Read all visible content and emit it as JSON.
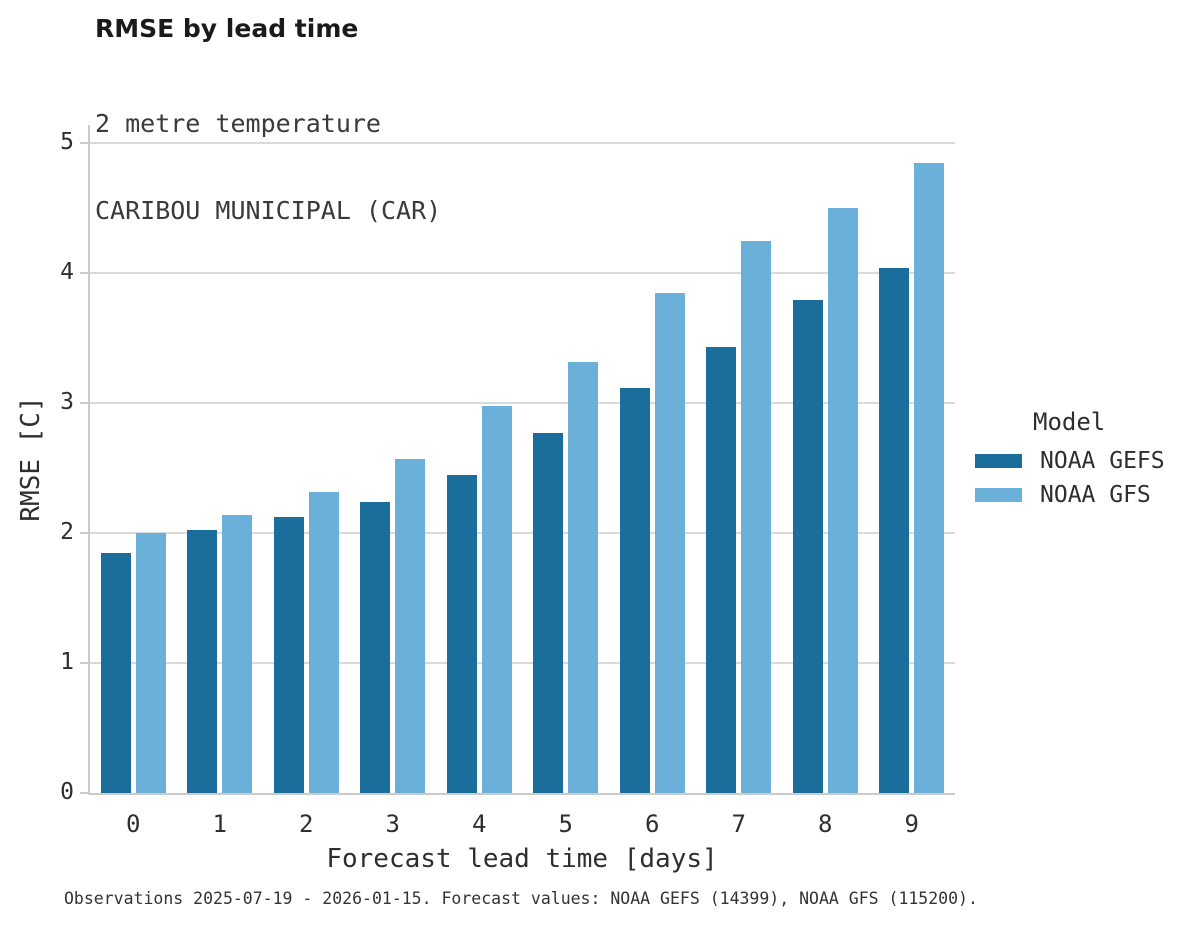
{
  "header": {
    "title": "RMSE by lead time",
    "subtitle_lines": [
      "2 metre temperature",
      "CARIBOU MUNICIPAL (CAR)"
    ]
  },
  "legend": {
    "title": "Model",
    "items": [
      {
        "label": "NOAA GEFS",
        "color": "#1B6D9C"
      },
      {
        "label": "NOAA GFS",
        "color": "#6BB0D9"
      }
    ]
  },
  "footer": {
    "note": "Observations 2025-07-19 - 2026-01-15. Forecast values: NOAA GEFS (14399), NOAA GFS (115200)."
  },
  "chart_data": {
    "type": "bar",
    "title": "RMSE by lead time",
    "subtitle": "2 metre temperature — CARIBOU MUNICIPAL (CAR)",
    "xlabel": "Forecast lead time [days]",
    "ylabel": "RMSE [C]",
    "categories": [
      "0",
      "1",
      "2",
      "3",
      "4",
      "5",
      "6",
      "7",
      "8",
      "9"
    ],
    "series": [
      {
        "name": "NOAA GEFS",
        "color": "#1B6D9C",
        "values": [
          1.85,
          2.02,
          2.12,
          2.24,
          2.45,
          2.77,
          3.12,
          3.43,
          3.79,
          4.04
        ]
      },
      {
        "name": "NOAA GFS",
        "color": "#6BB0D9",
        "values": [
          2.0,
          2.14,
          2.32,
          2.57,
          2.98,
          3.32,
          3.85,
          4.25,
          4.5,
          4.85
        ]
      }
    ],
    "ylim": [
      0,
      5.14
    ],
    "yticks": [
      0,
      1,
      2,
      3,
      4,
      5
    ],
    "grid": "horizontal",
    "legend_position": "right",
    "colors": {
      "gridline": "#dadada",
      "spine": "#c9cbcc",
      "text": "#2e2e2e"
    }
  }
}
